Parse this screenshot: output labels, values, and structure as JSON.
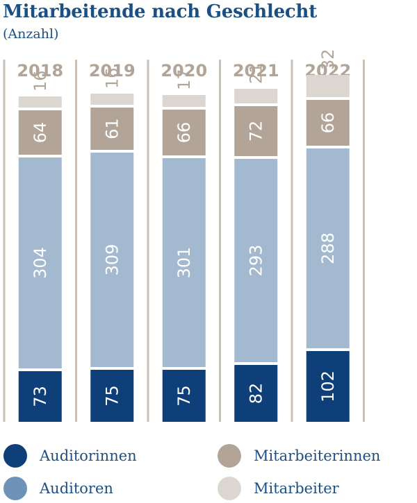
{
  "title": "Mitarbeitende nach Geschlecht",
  "subtitle": "(Anzahl)",
  "chart_data": {
    "type": "bar",
    "stacked": true,
    "categories": [
      "2018",
      "2019",
      "2020",
      "2021",
      "2022"
    ],
    "series": [
      {
        "name": "Auditorinnen",
        "color": "#0f3f78",
        "values": [
          73,
          75,
          75,
          82,
          102
        ]
      },
      {
        "name": "Auditoren",
        "color": "#a3b9cf",
        "values": [
          304,
          309,
          301,
          293,
          288
        ]
      },
      {
        "name": "Mitarbeiterinnen",
        "color": "#b2a597",
        "values": [
          64,
          61,
          66,
          72,
          66
        ]
      },
      {
        "name": "Mitarbeiter",
        "color": "#dcd6d0",
        "values": [
          16,
          16,
          17,
          21,
          32
        ]
      }
    ],
    "divider_color": "#c9bfb5",
    "category_label_color": "#b2a597"
  },
  "legend": [
    {
      "label": "Auditorinnen",
      "color": "#0f3f78"
    },
    {
      "label": "Mitarbeiterinnen",
      "color": "#b2a597"
    },
    {
      "label": "Auditoren",
      "color": "#6f93b8"
    },
    {
      "label": "Mitarbeiter",
      "color": "#dcd6d0"
    }
  ]
}
